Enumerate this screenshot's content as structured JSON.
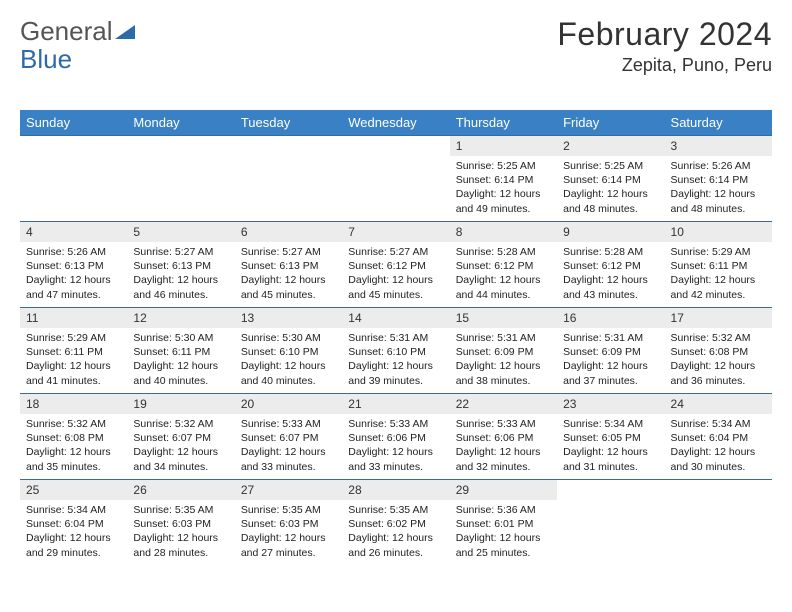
{
  "logo": {
    "text1": "General",
    "text2": "Blue"
  },
  "title": "February 2024",
  "location": "Zepita, Puno, Peru",
  "colors": {
    "header_bg": "#3a80c4",
    "header_text": "#ffffff",
    "row_border": "#3a6a9a",
    "daynum_bg": "#ececec",
    "logo_gray": "#555555",
    "logo_blue": "#2f6aa8"
  },
  "day_names": [
    "Sunday",
    "Monday",
    "Tuesday",
    "Wednesday",
    "Thursday",
    "Friday",
    "Saturday"
  ],
  "weeks": [
    [
      {
        "n": "",
        "sunrise": "",
        "sunset": "",
        "daylight": ""
      },
      {
        "n": "",
        "sunrise": "",
        "sunset": "",
        "daylight": ""
      },
      {
        "n": "",
        "sunrise": "",
        "sunset": "",
        "daylight": ""
      },
      {
        "n": "",
        "sunrise": "",
        "sunset": "",
        "daylight": ""
      },
      {
        "n": "1",
        "sunrise": "Sunrise: 5:25 AM",
        "sunset": "Sunset: 6:14 PM",
        "daylight": "Daylight: 12 hours and 49 minutes."
      },
      {
        "n": "2",
        "sunrise": "Sunrise: 5:25 AM",
        "sunset": "Sunset: 6:14 PM",
        "daylight": "Daylight: 12 hours and 48 minutes."
      },
      {
        "n": "3",
        "sunrise": "Sunrise: 5:26 AM",
        "sunset": "Sunset: 6:14 PM",
        "daylight": "Daylight: 12 hours and 48 minutes."
      }
    ],
    [
      {
        "n": "4",
        "sunrise": "Sunrise: 5:26 AM",
        "sunset": "Sunset: 6:13 PM",
        "daylight": "Daylight: 12 hours and 47 minutes."
      },
      {
        "n": "5",
        "sunrise": "Sunrise: 5:27 AM",
        "sunset": "Sunset: 6:13 PM",
        "daylight": "Daylight: 12 hours and 46 minutes."
      },
      {
        "n": "6",
        "sunrise": "Sunrise: 5:27 AM",
        "sunset": "Sunset: 6:13 PM",
        "daylight": "Daylight: 12 hours and 45 minutes."
      },
      {
        "n": "7",
        "sunrise": "Sunrise: 5:27 AM",
        "sunset": "Sunset: 6:12 PM",
        "daylight": "Daylight: 12 hours and 45 minutes."
      },
      {
        "n": "8",
        "sunrise": "Sunrise: 5:28 AM",
        "sunset": "Sunset: 6:12 PM",
        "daylight": "Daylight: 12 hours and 44 minutes."
      },
      {
        "n": "9",
        "sunrise": "Sunrise: 5:28 AM",
        "sunset": "Sunset: 6:12 PM",
        "daylight": "Daylight: 12 hours and 43 minutes."
      },
      {
        "n": "10",
        "sunrise": "Sunrise: 5:29 AM",
        "sunset": "Sunset: 6:11 PM",
        "daylight": "Daylight: 12 hours and 42 minutes."
      }
    ],
    [
      {
        "n": "11",
        "sunrise": "Sunrise: 5:29 AM",
        "sunset": "Sunset: 6:11 PM",
        "daylight": "Daylight: 12 hours and 41 minutes."
      },
      {
        "n": "12",
        "sunrise": "Sunrise: 5:30 AM",
        "sunset": "Sunset: 6:11 PM",
        "daylight": "Daylight: 12 hours and 40 minutes."
      },
      {
        "n": "13",
        "sunrise": "Sunrise: 5:30 AM",
        "sunset": "Sunset: 6:10 PM",
        "daylight": "Daylight: 12 hours and 40 minutes."
      },
      {
        "n": "14",
        "sunrise": "Sunrise: 5:31 AM",
        "sunset": "Sunset: 6:10 PM",
        "daylight": "Daylight: 12 hours and 39 minutes."
      },
      {
        "n": "15",
        "sunrise": "Sunrise: 5:31 AM",
        "sunset": "Sunset: 6:09 PM",
        "daylight": "Daylight: 12 hours and 38 minutes."
      },
      {
        "n": "16",
        "sunrise": "Sunrise: 5:31 AM",
        "sunset": "Sunset: 6:09 PM",
        "daylight": "Daylight: 12 hours and 37 minutes."
      },
      {
        "n": "17",
        "sunrise": "Sunrise: 5:32 AM",
        "sunset": "Sunset: 6:08 PM",
        "daylight": "Daylight: 12 hours and 36 minutes."
      }
    ],
    [
      {
        "n": "18",
        "sunrise": "Sunrise: 5:32 AM",
        "sunset": "Sunset: 6:08 PM",
        "daylight": "Daylight: 12 hours and 35 minutes."
      },
      {
        "n": "19",
        "sunrise": "Sunrise: 5:32 AM",
        "sunset": "Sunset: 6:07 PM",
        "daylight": "Daylight: 12 hours and 34 minutes."
      },
      {
        "n": "20",
        "sunrise": "Sunrise: 5:33 AM",
        "sunset": "Sunset: 6:07 PM",
        "daylight": "Daylight: 12 hours and 33 minutes."
      },
      {
        "n": "21",
        "sunrise": "Sunrise: 5:33 AM",
        "sunset": "Sunset: 6:06 PM",
        "daylight": "Daylight: 12 hours and 33 minutes."
      },
      {
        "n": "22",
        "sunrise": "Sunrise: 5:33 AM",
        "sunset": "Sunset: 6:06 PM",
        "daylight": "Daylight: 12 hours and 32 minutes."
      },
      {
        "n": "23",
        "sunrise": "Sunrise: 5:34 AM",
        "sunset": "Sunset: 6:05 PM",
        "daylight": "Daylight: 12 hours and 31 minutes."
      },
      {
        "n": "24",
        "sunrise": "Sunrise: 5:34 AM",
        "sunset": "Sunset: 6:04 PM",
        "daylight": "Daylight: 12 hours and 30 minutes."
      }
    ],
    [
      {
        "n": "25",
        "sunrise": "Sunrise: 5:34 AM",
        "sunset": "Sunset: 6:04 PM",
        "daylight": "Daylight: 12 hours and 29 minutes."
      },
      {
        "n": "26",
        "sunrise": "Sunrise: 5:35 AM",
        "sunset": "Sunset: 6:03 PM",
        "daylight": "Daylight: 12 hours and 28 minutes."
      },
      {
        "n": "27",
        "sunrise": "Sunrise: 5:35 AM",
        "sunset": "Sunset: 6:03 PM",
        "daylight": "Daylight: 12 hours and 27 minutes."
      },
      {
        "n": "28",
        "sunrise": "Sunrise: 5:35 AM",
        "sunset": "Sunset: 6:02 PM",
        "daylight": "Daylight: 12 hours and 26 minutes."
      },
      {
        "n": "29",
        "sunrise": "Sunrise: 5:36 AM",
        "sunset": "Sunset: 6:01 PM",
        "daylight": "Daylight: 12 hours and 25 minutes."
      },
      {
        "n": "",
        "sunrise": "",
        "sunset": "",
        "daylight": ""
      },
      {
        "n": "",
        "sunrise": "",
        "sunset": "",
        "daylight": ""
      }
    ]
  ]
}
